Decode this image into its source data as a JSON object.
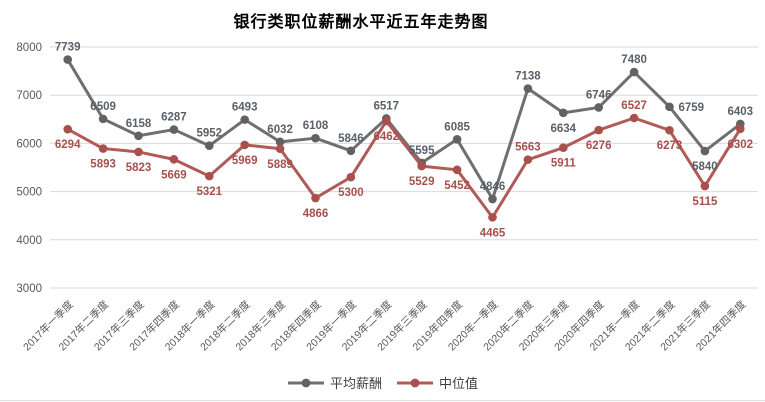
{
  "title": "银行类职位薪酬水平近五年走势图",
  "legend": [
    {
      "label": "平均薪酬",
      "color": "#6f6f6f",
      "marker_color": "#626262"
    },
    {
      "label": "中位值",
      "color": "#b15a56",
      "marker_color": "#a8504c"
    }
  ],
  "chart_data": {
    "type": "line",
    "title": "银行类职位薪酬水平近五年走势图",
    "categories": [
      "2017年一季度",
      "2017年二季度",
      "2017年三季度",
      "2017年四季度",
      "2018年一季度",
      "2018年二季度",
      "2018年三季度",
      "2018年四季度",
      "2019年一季度",
      "2019年二季度",
      "2019年三季度",
      "2019年四季度",
      "2020年一季度",
      "2020年二季度",
      "2020年三季度",
      "2020年四季度",
      "2021年一季度",
      "2021年二季度",
      "2021年三季度",
      "2021年四季度"
    ],
    "series": [
      {
        "id": "average-salary",
        "name": "平均薪酬",
        "color": "#6f6f6f",
        "marker_color": "#626262",
        "label_color": "#596067",
        "values": [
          7739,
          6509,
          6158,
          6287,
          5952,
          6493,
          6032,
          6108,
          5846,
          6517,
          5595,
          6085,
          4846,
          7138,
          6634,
          6746,
          7480,
          6759,
          5840,
          6403
        ],
        "label_side": [
          "above",
          "above",
          "above",
          "above",
          "above",
          "above",
          "above",
          "above",
          "above",
          "above",
          "above",
          "above",
          "above",
          "above",
          "below",
          "above",
          "above",
          "right",
          "below",
          "above"
        ]
      },
      {
        "id": "median-salary",
        "name": "中位值",
        "color": "#b15a56",
        "marker_color": "#a8504c",
        "label_color": "#a6514e",
        "values": [
          6294,
          5893,
          5823,
          5669,
          5321,
          5969,
          5889,
          4866,
          5300,
          6462,
          5529,
          5452,
          4465,
          5663,
          5911,
          6276,
          6527,
          6273,
          5115,
          6302
        ],
        "label_side": [
          "below",
          "below",
          "below",
          "below",
          "below",
          "below",
          "below",
          "below",
          "below",
          "below",
          "below",
          "below",
          "below",
          "above",
          "below",
          "below",
          "above",
          "below",
          "below",
          "below"
        ]
      }
    ],
    "xlabel": "",
    "ylabel": "",
    "ylim": [
      3000,
      8000
    ],
    "yticks": [
      3000,
      4000,
      5000,
      6000,
      7000,
      8000
    ],
    "grid": "horizontal-only",
    "gridline_color": "#d9d9d9",
    "axis_text_color": "#595959",
    "legend_position": "bottom-center",
    "x_tick_rotation_deg": -45
  }
}
